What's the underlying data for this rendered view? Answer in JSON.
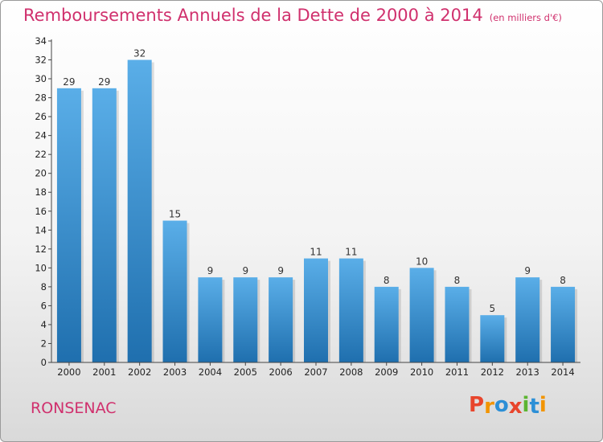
{
  "header": {
    "title": "Remboursements Annuels de la Dette de 2000 à 2014",
    "unit": "(en milliers d'€)"
  },
  "footer": {
    "town": "RONSENAC",
    "logo": "Proxiti"
  },
  "colors": {
    "title": "#d0306d",
    "bar_top": "#5aaee8",
    "bar_bottom": "#1f6fae",
    "logo_letters": [
      "#e8452c",
      "#f29400",
      "#2c8fd6",
      "#e8452c",
      "#5cb531",
      "#2c8fd6",
      "#f29400"
    ]
  },
  "chart_data": {
    "type": "bar",
    "title": "Remboursements Annuels de la Dette de 2000 à 2014",
    "subtitle": "(en milliers d'€)",
    "categories": [
      "2000",
      "2001",
      "2002",
      "2003",
      "2004",
      "2005",
      "2006",
      "2007",
      "2008",
      "2009",
      "2010",
      "2011",
      "2012",
      "2013",
      "2014"
    ],
    "values": [
      29,
      29,
      32,
      15,
      9,
      9,
      9,
      11,
      11,
      8,
      10,
      8,
      5,
      9,
      8
    ],
    "ylim": [
      0,
      34
    ],
    "yticks": [
      0,
      2,
      4,
      6,
      8,
      10,
      12,
      14,
      16,
      18,
      20,
      22,
      24,
      26,
      28,
      30,
      32,
      34
    ],
    "grid": false,
    "legend": "none"
  }
}
